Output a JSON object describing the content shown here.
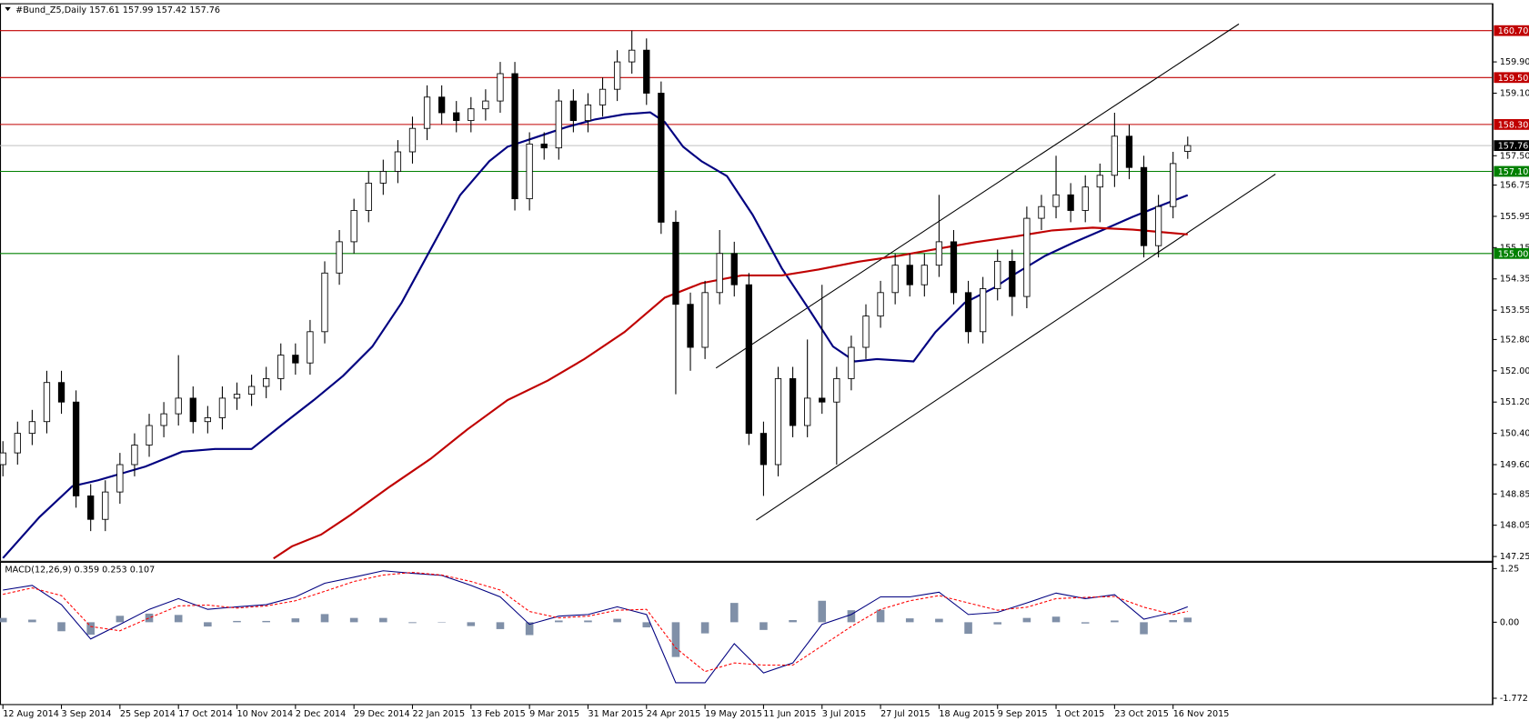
{
  "chart_data": [
    {
      "type": "candlestick",
      "title": "#Bund_Z5,Daily  157.61 157.99 157.42 157.76",
      "candle_color": "#000000",
      "x": [
        0,
        4,
        8,
        12,
        16,
        20,
        24,
        28,
        32,
        36,
        40,
        44,
        48,
        52,
        56,
        60,
        64,
        68,
        72,
        76,
        80,
        84,
        88,
        92,
        96,
        100,
        104,
        108,
        112,
        116,
        120,
        124,
        128,
        132,
        136,
        140,
        144,
        148,
        152,
        156,
        160,
        164,
        168,
        172,
        176,
        180,
        184,
        188,
        192,
        196,
        200,
        204,
        208,
        212,
        216,
        220,
        224,
        228,
        232,
        236,
        240,
        244,
        248,
        252,
        256,
        260,
        264,
        268,
        272,
        276,
        280,
        284,
        288,
        292,
        296,
        300,
        304,
        308,
        312,
        316,
        320,
        324
      ],
      "ohlc": [
        [
          149.6,
          150.2,
          149.3,
          149.9
        ],
        [
          149.9,
          150.7,
          149.6,
          150.4
        ],
        [
          150.4,
          151.0,
          150.1,
          150.7
        ],
        [
          150.7,
          152.0,
          150.4,
          151.7
        ],
        [
          151.7,
          152.0,
          150.9,
          151.2
        ],
        [
          151.2,
          151.5,
          148.5,
          148.8
        ],
        [
          148.8,
          149.1,
          147.9,
          148.2
        ],
        [
          148.2,
          149.2,
          147.9,
          148.9
        ],
        [
          148.9,
          149.9,
          148.6,
          149.6
        ],
        [
          149.6,
          150.4,
          149.3,
          150.1
        ],
        [
          150.1,
          150.9,
          149.8,
          150.6
        ],
        [
          150.6,
          151.2,
          150.3,
          150.9
        ],
        [
          150.9,
          152.4,
          150.6,
          151.3
        ],
        [
          151.3,
          151.6,
          150.4,
          150.7
        ],
        [
          150.7,
          151.1,
          150.4,
          150.8
        ],
        [
          150.8,
          151.6,
          150.5,
          151.3
        ],
        [
          151.3,
          151.7,
          151.0,
          151.4
        ],
        [
          151.4,
          151.9,
          151.1,
          151.6
        ],
        [
          151.6,
          152.1,
          151.3,
          151.8
        ],
        [
          151.8,
          152.7,
          151.5,
          152.4
        ],
        [
          152.4,
          152.7,
          151.9,
          152.2
        ],
        [
          152.2,
          153.3,
          151.9,
          153.0
        ],
        [
          153.0,
          154.8,
          152.7,
          154.5
        ],
        [
          154.5,
          155.6,
          154.2,
          155.3
        ],
        [
          155.3,
          156.4,
          155.0,
          156.1
        ],
        [
          156.1,
          157.1,
          155.8,
          156.8
        ],
        [
          156.8,
          157.4,
          156.5,
          157.1
        ],
        [
          157.1,
          157.9,
          156.8,
          157.6
        ],
        [
          157.6,
          158.5,
          157.3,
          158.2
        ],
        [
          158.2,
          159.3,
          157.9,
          159.0
        ],
        [
          159.0,
          159.3,
          158.3,
          158.6
        ],
        [
          158.6,
          158.9,
          158.1,
          158.4
        ],
        [
          158.4,
          159.0,
          158.1,
          158.7
        ],
        [
          158.7,
          159.2,
          158.4,
          158.9
        ],
        [
          158.9,
          159.9,
          158.6,
          159.6
        ],
        [
          159.6,
          159.9,
          156.1,
          156.4
        ],
        [
          156.4,
          158.1,
          156.1,
          157.8
        ],
        [
          157.8,
          158.1,
          157.4,
          157.7
        ],
        [
          157.7,
          159.2,
          157.4,
          158.9
        ],
        [
          158.9,
          159.2,
          158.1,
          158.4
        ],
        [
          158.4,
          159.1,
          158.1,
          158.8
        ],
        [
          158.8,
          159.5,
          158.5,
          159.2
        ],
        [
          159.2,
          160.2,
          158.9,
          159.9
        ],
        [
          159.9,
          160.7,
          159.6,
          160.2
        ],
        [
          160.2,
          160.5,
          158.8,
          159.1
        ],
        [
          159.1,
          159.4,
          155.5,
          155.8
        ],
        [
          155.8,
          156.1,
          151.4,
          153.7
        ],
        [
          153.7,
          154.0,
          152.0,
          152.6
        ],
        [
          152.6,
          154.3,
          152.3,
          154.0
        ],
        [
          154.0,
          155.6,
          153.7,
          155.0
        ],
        [
          155.0,
          155.3,
          153.9,
          154.2
        ],
        [
          154.2,
          154.5,
          150.1,
          150.4
        ],
        [
          150.4,
          150.7,
          148.8,
          149.6
        ],
        [
          149.6,
          152.1,
          149.3,
          151.8
        ],
        [
          151.8,
          152.1,
          150.3,
          150.6
        ],
        [
          150.6,
          152.8,
          150.3,
          151.3
        ],
        [
          151.3,
          154.2,
          150.9,
          151.2
        ],
        [
          151.2,
          152.1,
          149.6,
          151.8
        ],
        [
          151.8,
          152.9,
          151.5,
          152.6
        ],
        [
          152.6,
          153.7,
          152.3,
          153.4
        ],
        [
          153.4,
          154.3,
          153.1,
          154.0
        ],
        [
          154.0,
          155.0,
          153.7,
          154.7
        ],
        [
          154.7,
          155.0,
          153.9,
          154.2
        ],
        [
          154.2,
          155.0,
          153.9,
          154.7
        ],
        [
          154.7,
          156.5,
          154.4,
          155.3
        ],
        [
          155.3,
          155.6,
          153.7,
          154.0
        ],
        [
          154.0,
          154.3,
          152.7,
          153.0
        ],
        [
          153.0,
          154.4,
          152.7,
          154.1
        ],
        [
          154.1,
          155.1,
          153.8,
          154.8
        ],
        [
          154.8,
          155.1,
          153.4,
          153.9
        ],
        [
          153.9,
          156.2,
          153.6,
          155.9
        ],
        [
          155.9,
          156.5,
          155.6,
          156.2
        ],
        [
          156.2,
          157.5,
          155.9,
          156.5
        ],
        [
          156.5,
          156.8,
          155.8,
          156.1
        ],
        [
          156.1,
          157.0,
          155.8,
          156.7
        ],
        [
          156.7,
          157.3,
          155.8,
          157.0
        ],
        [
          157.0,
          158.6,
          156.7,
          158.0
        ],
        [
          158.0,
          158.3,
          156.9,
          157.2
        ],
        [
          157.2,
          157.5,
          154.9,
          155.2
        ],
        [
          155.2,
          156.5,
          154.9,
          156.2
        ],
        [
          156.2,
          157.6,
          155.9,
          157.3
        ],
        [
          157.61,
          157.99,
          157.42,
          157.76
        ]
      ],
      "lines": [
        {
          "color": "#000080",
          "x": [
            0,
            10,
            19,
            26,
            39,
            49,
            58,
            68,
            77,
            85,
            93,
            101,
            109,
            117,
            125,
            133,
            138,
            146,
            154,
            162,
            170,
            177,
            181,
            186,
            191,
            198,
            205,
            213,
            221,
            227,
            233,
            239,
            249,
            255,
            263,
            271,
            277,
            285,
            293,
            301,
            309,
            317,
            324
          ],
          "values": [
            147.21,
            148.26,
            149.05,
            149.2,
            149.55,
            149.93,
            150.0,
            150.0,
            150.67,
            151.25,
            151.87,
            152.62,
            153.74,
            155.11,
            156.49,
            157.36,
            157.73,
            157.98,
            158.23,
            158.43,
            158.56,
            158.61,
            158.36,
            157.73,
            157.36,
            156.98,
            155.99,
            154.62,
            153.49,
            152.62,
            152.24,
            152.3,
            152.24,
            152.99,
            153.74,
            154.12,
            154.49,
            154.94,
            155.29,
            155.61,
            155.94,
            156.24,
            156.49
          ]
        },
        {
          "color": "#c00000",
          "x": [
            74,
            79,
            87,
            95,
            106,
            117,
            127,
            138,
            149,
            159,
            170,
            181,
            191,
            202,
            213,
            223,
            234,
            245,
            255,
            266,
            277,
            287,
            298,
            309,
            324
          ],
          "values": [
            147.2,
            147.51,
            147.81,
            148.31,
            149.05,
            149.75,
            150.5,
            151.25,
            151.75,
            152.3,
            152.99,
            153.87,
            154.24,
            154.44,
            154.44,
            154.59,
            154.79,
            154.94,
            155.11,
            155.29,
            155.44,
            155.59,
            155.66,
            155.61,
            155.49
          ]
        }
      ],
      "trendlines": [
        {
          "color": "#000000",
          "x": [
            195,
            338
          ],
          "values": [
            152.07,
            160.87
          ]
        },
        {
          "color": "#000000",
          "x": [
            206,
            348
          ],
          "values": [
            148.18,
            157.03
          ]
        }
      ],
      "levels": [
        {
          "value": 160.7,
          "label": "160.70",
          "color": "#c00000"
        },
        {
          "value": 159.5,
          "label": "159.50",
          "color": "#c00000"
        },
        {
          "value": 158.3,
          "label": "158.30",
          "color": "#c00000"
        },
        {
          "value": 157.76,
          "label": "157.76",
          "color": "#000000",
          "line_color": "#c0c0c0"
        },
        {
          "value": 157.1,
          "label": "157.10",
          "color": "#008000"
        },
        {
          "value": 155.0,
          "label": "155.00",
          "color": "#008000"
        }
      ],
      "xlim": [
        -0.8,
        407.2
      ],
      "ylim": [
        147.14,
        161.35
      ],
      "yticks": [
        {
          "value": 159.9,
          "label": "159.90"
        },
        {
          "value": 159.1,
          "label": "159.10"
        },
        {
          "value": 157.5,
          "label": "157.50"
        },
        156.75,
        155.95,
        155.15,
        154.35,
        153.55,
        {
          "value": 152.8,
          "label": "152.80"
        },
        {
          "value": 152.0,
          "label": "152.00"
        },
        {
          "value": 151.2,
          "label": "151.20"
        },
        {
          "value": 150.4,
          "label": "150.40"
        },
        {
          "value": 149.6,
          "label": "149.60"
        },
        148.85,
        148.05,
        147.25
      ]
    },
    {
      "type": "macd",
      "title": "MACD(12,26,9) 0.359 0.253 0.107",
      "x": [
        0,
        8,
        16,
        24,
        32,
        40,
        48,
        56,
        64,
        72,
        80,
        88,
        96,
        104,
        112,
        120,
        128,
        136,
        144,
        152,
        160,
        168,
        176,
        184,
        192,
        200,
        208,
        216,
        224,
        232,
        240,
        248,
        256,
        264,
        272,
        280,
        288,
        296,
        304,
        312,
        320,
        324
      ],
      "series": [
        {
          "style": "bars",
          "color": "#8090a8",
          "values": [
            0.1,
            0.06,
            -0.21,
            -0.29,
            0.15,
            0.2,
            0.17,
            -0.1,
            0.03,
            0.03,
            0.09,
            0.19,
            0.1,
            0.1,
            -0.02,
            -0.01,
            -0.09,
            -0.16,
            -0.3,
            0.04,
            0.04,
            0.08,
            -0.12,
            -0.81,
            -0.26,
            0.45,
            -0.18,
            0.05,
            0.5,
            0.28,
            0.29,
            0.09,
            0.08,
            -0.27,
            -0.05,
            0.1,
            0.13,
            -0.03,
            0.04,
            -0.28,
            0.05,
            0.107
          ]
        },
        {
          "style": "line",
          "color": "#000080",
          "values": [
            0.75,
            0.86,
            0.41,
            -0.39,
            -0.05,
            0.3,
            0.55,
            0.3,
            0.36,
            0.41,
            0.59,
            0.91,
            1.05,
            1.2,
            1.14,
            1.09,
            0.86,
            0.59,
            -0.05,
            0.14,
            0.18,
            0.36,
            0.18,
            -1.41,
            -1.41,
            -0.5,
            -1.18,
            -0.95,
            -0.05,
            0.18,
            0.59,
            0.59,
            0.7,
            0.18,
            0.23,
            0.45,
            0.68,
            0.55,
            0.64,
            0.07,
            0.23,
            0.359
          ]
        },
        {
          "style": "dashed",
          "color": "#ff0000",
          "values": [
            0.65,
            0.8,
            0.62,
            -0.1,
            -0.2,
            0.1,
            0.38,
            0.4,
            0.33,
            0.38,
            0.5,
            0.72,
            0.95,
            1.1,
            1.16,
            1.1,
            0.95,
            0.75,
            0.25,
            0.1,
            0.14,
            0.28,
            0.3,
            -0.6,
            -1.15,
            -0.95,
            -1.0,
            -1.0,
            -0.55,
            -0.1,
            0.3,
            0.5,
            0.62,
            0.45,
            0.28,
            0.35,
            0.55,
            0.58,
            0.6,
            0.35,
            0.18,
            0.253
          ]
        }
      ],
      "xlim": [
        -0.8,
        407.2
      ],
      "ylim": [
        -1.908,
        1.386
      ],
      "yticks": [
        1.25,
        {
          "value": 0,
          "label": "0.00"
        },
        -1.772
      ],
      "xticks": [
        {
          "value": 0,
          "label": "12 Aug 2014"
        },
        {
          "value": 16,
          "label": "3 Sep 2014"
        },
        {
          "value": 32,
          "label": "25 Sep 2014"
        },
        {
          "value": 48,
          "label": "17 Oct 2014"
        },
        {
          "value": 64,
          "label": "10 Nov 2014"
        },
        {
          "value": 80,
          "label": "2 Dec 2014"
        },
        {
          "value": 96,
          "label": "29 Dec 2014"
        },
        {
          "value": 112,
          "label": "22 Jan 2015"
        },
        {
          "value": 128,
          "label": "13 Feb 2015"
        },
        {
          "value": 144,
          "label": "9 Mar 2015"
        },
        {
          "value": 160,
          "label": "31 Mar 2015"
        },
        {
          "value": 176,
          "label": "24 Apr 2015"
        },
        {
          "value": 192,
          "label": "19 May 2015"
        },
        {
          "value": 208,
          "label": "11 Jun 2015"
        },
        {
          "value": 224,
          "label": "3 Jul 2015"
        },
        {
          "value": 240,
          "label": "27 Jul 2015"
        },
        {
          "value": 256,
          "label": "18 Aug 2015"
        },
        {
          "value": 272,
          "label": "9 Sep 2015"
        },
        {
          "value": 288,
          "label": "1 Oct 2015"
        },
        {
          "value": 304,
          "label": "23 Oct 2015"
        },
        {
          "value": 320,
          "label": "16 Nov 2015"
        }
      ]
    }
  ]
}
